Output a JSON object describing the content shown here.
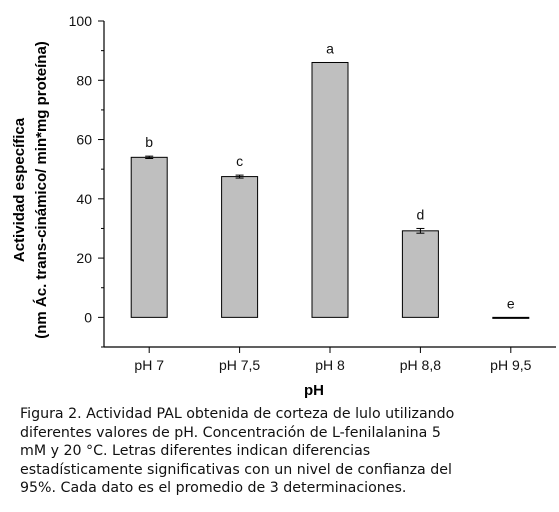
{
  "chart_data": {
    "type": "bar",
    "categories": [
      "pH 7",
      "pH 7,5",
      "pH 8",
      "pH 8,8",
      "pH 9,5"
    ],
    "values": [
      54.0,
      47.5,
      86.0,
      29.2,
      0.0
    ],
    "errors": [
      0.4,
      0.5,
      0.0,
      0.8,
      0.0
    ],
    "significance_letters": [
      "b",
      "c",
      "a",
      "d",
      "e"
    ],
    "title": "",
    "xlabel": "pH",
    "ylabel_lines": [
      "Actividad específica",
      "(nm Ác. trans-cinámico/ min*mg proteína)"
    ],
    "ylim": [
      -10,
      100
    ],
    "yticks": [
      0,
      20,
      40,
      60,
      80,
      100
    ],
    "bar_color": "#bfbfbf",
    "grid": false,
    "legend": "none"
  },
  "caption_lines": [
    "Figura 2.  Actividad PAL obtenida de corteza de lulo utilizando",
    "diferentes valores de pH. Concentración de L-fenilalanina 5",
    "mM y 20 °C. Letras diferentes indican diferencias",
    "estadísticamente significativas con un nivel de confianza del",
    "95%. Cada dato es el promedio de 3 determinaciones."
  ]
}
